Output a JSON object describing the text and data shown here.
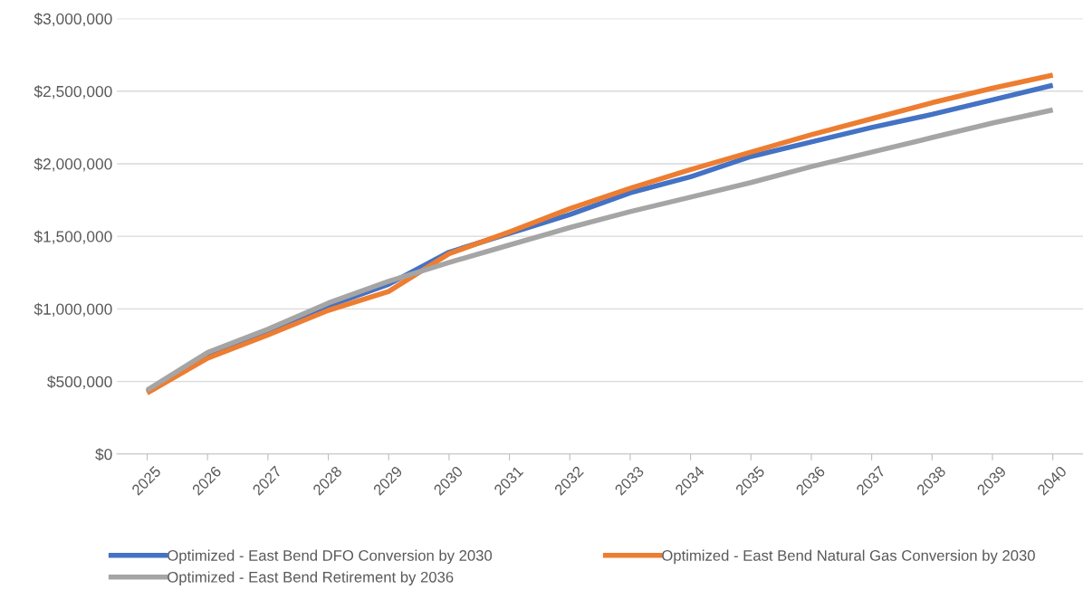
{
  "chart_data": {
    "type": "line",
    "categories": [
      "2025",
      "2026",
      "2027",
      "2028",
      "2029",
      "2030",
      "2031",
      "2032",
      "2033",
      "2034",
      "2035",
      "2036",
      "2037",
      "2038",
      "2039",
      "2040"
    ],
    "series": [
      {
        "name": "Optimized - East Bend DFO Conversion by 2030",
        "color": "#4472c4",
        "values": [
          430000,
          680000,
          840000,
          1020000,
          1170000,
          1390000,
          1520000,
          1650000,
          1800000,
          1910000,
          2050000,
          2150000,
          2250000,
          2340000,
          2440000,
          2540000
        ]
      },
      {
        "name": "Optimized - East Bend Natural Gas Conversion by 2030",
        "color": "#ed7d31",
        "values": [
          420000,
          660000,
          820000,
          990000,
          1120000,
          1380000,
          1530000,
          1690000,
          1830000,
          1960000,
          2080000,
          2200000,
          2310000,
          2420000,
          2520000,
          2610000
        ]
      },
      {
        "name": "Optimized - East Bend Retirement by 2036",
        "color": "#a5a5a5",
        "values": [
          440000,
          700000,
          860000,
          1040000,
          1190000,
          1320000,
          1440000,
          1560000,
          1670000,
          1770000,
          1870000,
          1980000,
          2080000,
          2180000,
          2280000,
          2370000
        ]
      }
    ],
    "ylim": [
      0,
      3000000
    ],
    "yticks": [
      {
        "value": 0,
        "label": "$0"
      },
      {
        "value": 500000,
        "label": "$500,000"
      },
      {
        "value": 1000000,
        "label": "$1,000,000"
      },
      {
        "value": 1500000,
        "label": "$1,500,000"
      },
      {
        "value": 2000000,
        "label": "$2,000,000"
      },
      {
        "value": 2500000,
        "label": "$2,500,000"
      },
      {
        "value": 3000000,
        "label": "$3,000,000"
      }
    ],
    "grid": "y",
    "legend": "bottom",
    "marker": "none",
    "line_style": "solid"
  }
}
